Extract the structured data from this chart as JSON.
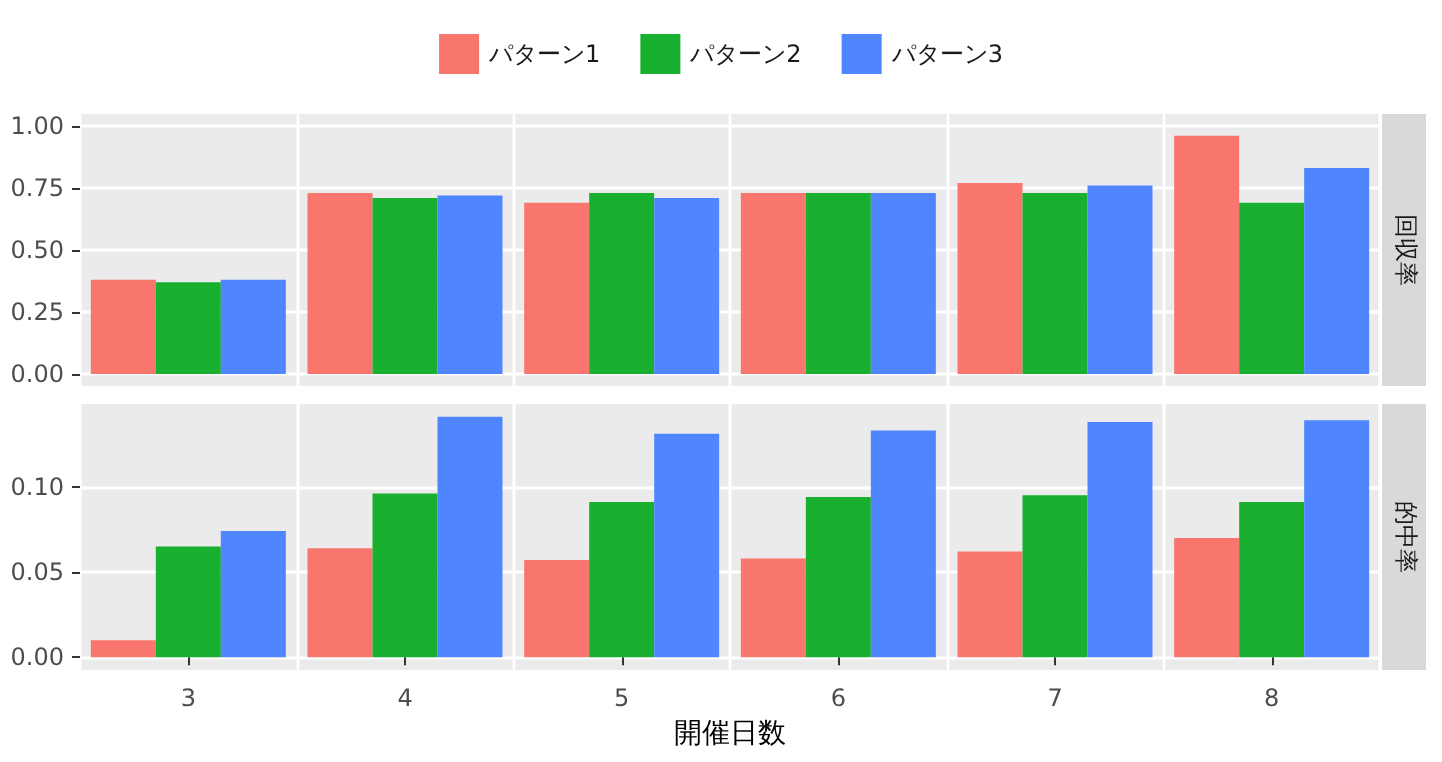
{
  "chart_data": [
    {
      "type": "bar",
      "title": "回収率",
      "categories": [
        "3",
        "4",
        "5",
        "6",
        "7",
        "8"
      ],
      "ylim": [
        -0.048,
        1.048
      ],
      "yticks": [
        {
          "value": 0,
          "label": "0.00"
        },
        {
          "value": 0.25,
          "label": "0.25"
        },
        {
          "value": 0.5,
          "label": "0.50"
        },
        {
          "value": 0.75,
          "label": "0.75"
        },
        {
          "value": 1,
          "label": "1.00"
        }
      ],
      "grid": true,
      "legend": "top",
      "tick_labels": "y",
      "series": [
        {
          "name": "パターン1",
          "color": "#f8766d",
          "values": [
            0.38,
            0.73,
            0.69,
            0.73,
            0.77,
            0.96
          ]
        },
        {
          "name": "パターン2",
          "color": "#19b02f",
          "values": [
            0.37,
            0.71,
            0.73,
            0.73,
            0.73,
            0.69
          ]
        },
        {
          "name": "パターン3",
          "color": "#4f86ff",
          "values": [
            0.38,
            0.72,
            0.71,
            0.73,
            0.76,
            0.83
          ]
        }
      ]
    },
    {
      "type": "bar",
      "title": "的中率",
      "xlabel": "開催日数",
      "categories": [
        "3",
        "4",
        "5",
        "6",
        "7",
        "8"
      ],
      "ylim": [
        -0.0074,
        0.1485
      ],
      "yticks": [
        {
          "value": 0,
          "label": "0.00"
        },
        {
          "value": 0.05,
          "label": "0.05"
        },
        {
          "value": 0.1,
          "label": "0.10"
        }
      ],
      "grid": true,
      "series": [
        {
          "color": "#f8766d",
          "values": [
            0.01,
            0.064,
            0.057,
            0.058,
            0.062,
            0.07
          ]
        },
        {
          "color": "#19b02f",
          "values": [
            0.065,
            0.096,
            0.091,
            0.094,
            0.095,
            0.091
          ]
        },
        {
          "color": "#4f86ff",
          "values": [
            0.074,
            0.141,
            0.131,
            0.133,
            0.138,
            0.139
          ]
        }
      ]
    }
  ]
}
